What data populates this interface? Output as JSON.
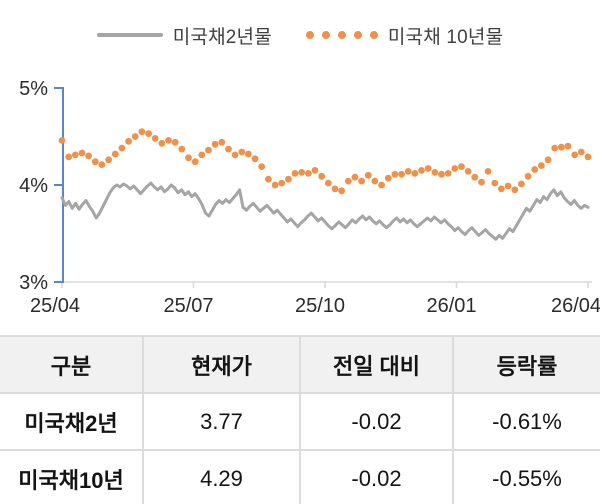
{
  "legend": {
    "series1_label": "미국채2년물",
    "series2_label": "미국채 10년물"
  },
  "colors": {
    "line_2y": "#A5A5A5",
    "dots_10y": "#F0914B",
    "y_axis": "#5B88C2",
    "x_axis": "#D9D9D9",
    "axis_text": "#2B2B2B",
    "table_border": "#DCDCDC",
    "header_bg": "#F1F1F1"
  },
  "chart_data": {
    "type": "line",
    "title": "",
    "xlabel": "",
    "ylabel": "",
    "ylim": [
      3,
      5
    ],
    "grid": false,
    "legend_position": "top",
    "x_ticks": [
      "25/04",
      "25/07",
      "25/10",
      "26/01",
      "26/04"
    ],
    "y_ticks": [
      {
        "label": "5%",
        "value": 5
      },
      {
        "label": "4%",
        "value": 4
      },
      {
        "label": "3%",
        "value": 3
      }
    ],
    "series": [
      {
        "name": "미국채2년물",
        "style": "line",
        "color": "#A5A5A5",
        "values": [
          3.87,
          3.79,
          3.83,
          3.76,
          3.81,
          3.75,
          3.8,
          3.84,
          3.78,
          3.73,
          3.66,
          3.71,
          3.78,
          3.85,
          3.92,
          3.97,
          4.0,
          3.98,
          4.01,
          3.99,
          3.96,
          3.99,
          3.95,
          3.91,
          3.95,
          3.99,
          4.02,
          3.98,
          3.95,
          3.98,
          3.93,
          3.96,
          4.0,
          3.97,
          3.92,
          3.95,
          3.9,
          3.93,
          3.88,
          3.91,
          3.86,
          3.8,
          3.71,
          3.68,
          3.74,
          3.8,
          3.84,
          3.81,
          3.85,
          3.82,
          3.86,
          3.9,
          3.95,
          3.77,
          3.74,
          3.78,
          3.81,
          3.77,
          3.73,
          3.76,
          3.79,
          3.75,
          3.71,
          3.74,
          3.7,
          3.66,
          3.62,
          3.65,
          3.61,
          3.57,
          3.61,
          3.64,
          3.68,
          3.71,
          3.67,
          3.63,
          3.66,
          3.62,
          3.58,
          3.55,
          3.58,
          3.62,
          3.59,
          3.56,
          3.6,
          3.64,
          3.61,
          3.65,
          3.68,
          3.64,
          3.67,
          3.63,
          3.6,
          3.63,
          3.59,
          3.56,
          3.59,
          3.63,
          3.66,
          3.62,
          3.65,
          3.61,
          3.64,
          3.6,
          3.57,
          3.6,
          3.63,
          3.66,
          3.63,
          3.67,
          3.64,
          3.61,
          3.64,
          3.6,
          3.57,
          3.53,
          3.56,
          3.52,
          3.49,
          3.53,
          3.56,
          3.52,
          3.48,
          3.51,
          3.54,
          3.5,
          3.47,
          3.44,
          3.48,
          3.45,
          3.5,
          3.55,
          3.52,
          3.58,
          3.64,
          3.7,
          3.76,
          3.73,
          3.79,
          3.85,
          3.82,
          3.88,
          3.85,
          3.91,
          3.95,
          3.89,
          3.93,
          3.87,
          3.83,
          3.8,
          3.84,
          3.79,
          3.76,
          3.79,
          3.77
        ]
      },
      {
        "name": "미국채 10년물",
        "style": "dots",
        "color": "#F0914B",
        "values": [
          4.46,
          4.29,
          4.31,
          4.33,
          4.3,
          4.24,
          4.21,
          4.26,
          4.32,
          4.38,
          4.45,
          4.5,
          4.55,
          4.53,
          4.48,
          4.43,
          4.46,
          4.44,
          4.37,
          4.28,
          4.24,
          4.31,
          4.36,
          4.42,
          4.44,
          4.37,
          4.31,
          4.34,
          4.32,
          4.27,
          4.19,
          4.06,
          4.0,
          4.02,
          4.06,
          4.12,
          4.13,
          4.12,
          4.15,
          4.09,
          4.02,
          3.96,
          3.94,
          4.04,
          4.08,
          4.04,
          4.1,
          4.04,
          4.0,
          4.07,
          4.11,
          4.11,
          4.14,
          4.12,
          4.15,
          4.17,
          4.13,
          4.11,
          4.12,
          4.17,
          4.19,
          4.14,
          4.08,
          4.03,
          4.14,
          4.02,
          3.96,
          3.99,
          3.95,
          4.01,
          4.09,
          4.16,
          4.2,
          4.26,
          4.38,
          4.39,
          4.4,
          4.31,
          4.34,
          4.29
        ]
      }
    ]
  },
  "table": {
    "headers": [
      "구분",
      "현재가",
      "전일 대비",
      "등락률"
    ],
    "rows": [
      {
        "name": "미국채2년",
        "price": "3.77",
        "change": "-0.02",
        "pct": "-0.61%"
      },
      {
        "name": "미국채10년",
        "price": "4.29",
        "change": "-0.02",
        "pct": "-0.55%"
      }
    ]
  }
}
